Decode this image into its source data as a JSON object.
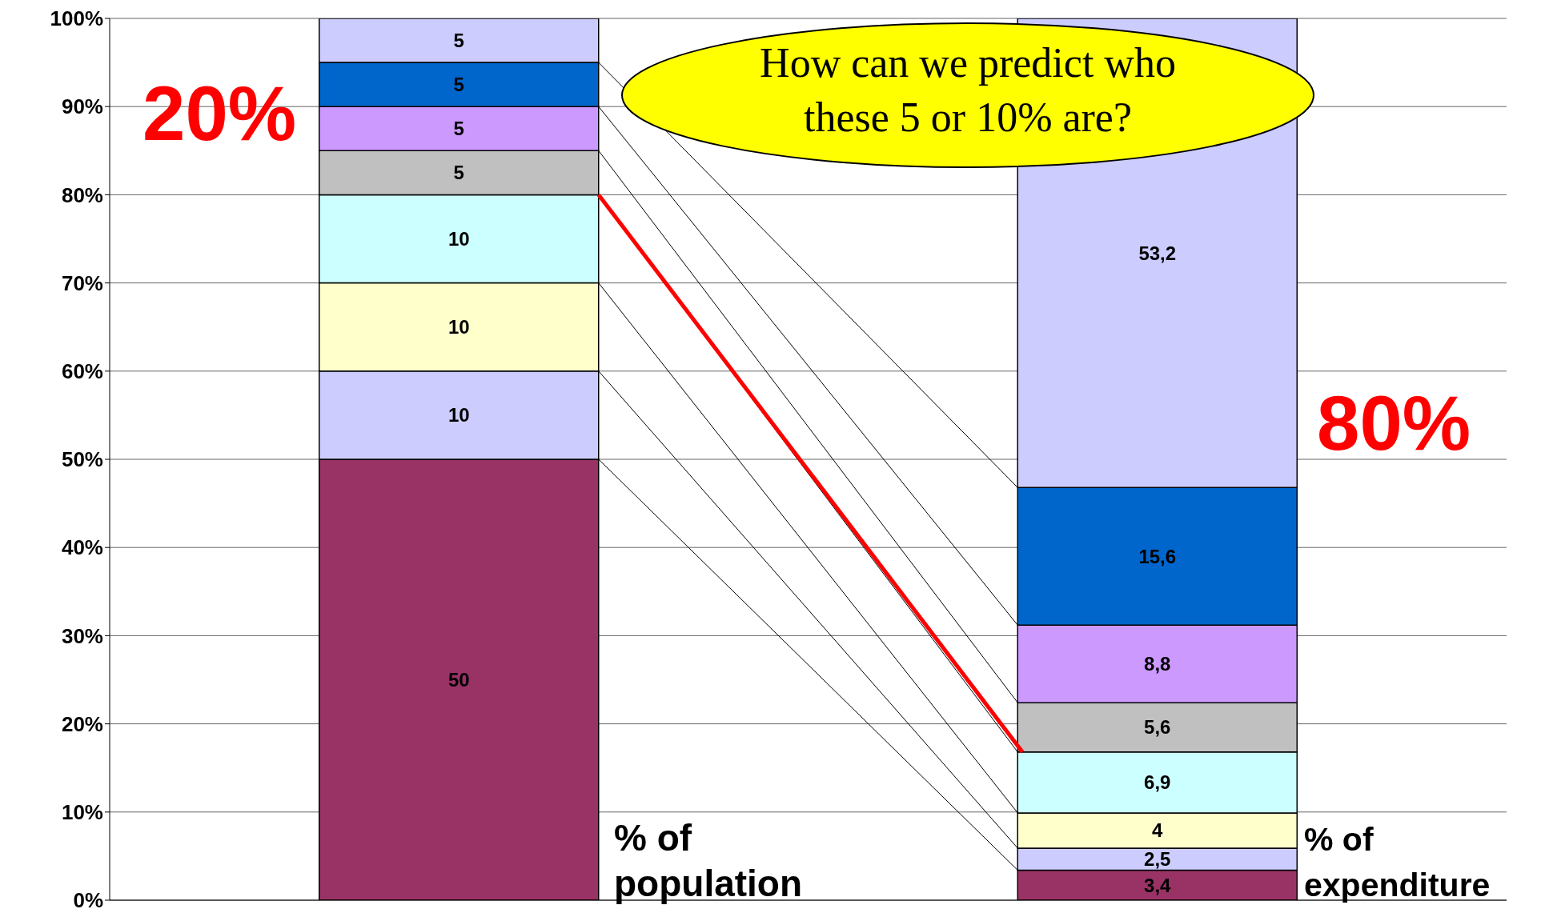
{
  "chart_data": {
    "type": "bar",
    "stacked": true,
    "categories": [
      null,
      null
    ],
    "series": [
      {
        "color": "#993366",
        "values": [
          50,
          3.4
        ],
        "value_labels": [
          "50",
          "3,4"
        ]
      },
      {
        "color": "#ccccff",
        "values": [
          10,
          2.5
        ],
        "value_labels": [
          "10",
          "2,5"
        ]
      },
      {
        "color": "#ffffcc",
        "values": [
          10,
          4
        ],
        "value_labels": [
          "10",
          "4"
        ]
      },
      {
        "color": "#ccffff",
        "values": [
          10,
          6.9
        ],
        "value_labels": [
          "10",
          "6,9"
        ]
      },
      {
        "color": "#c0c0c0",
        "values": [
          5,
          5.6
        ],
        "value_labels": [
          "5",
          "5,6"
        ]
      },
      {
        "color": "#cc99ff",
        "values": [
          5,
          8.8
        ],
        "value_labels": [
          "5",
          "8,8"
        ]
      },
      {
        "color": "#0066cc",
        "values": [
          5,
          15.6
        ],
        "value_labels": [
          "5",
          "15,6"
        ]
      },
      {
        "color": "#ccccff",
        "values": [
          5,
          53.2
        ],
        "value_labels": [
          "5",
          "53,2"
        ]
      }
    ],
    "ylim": [
      0,
      100
    ],
    "yticks": [
      {
        "value": 0,
        "label": "0%"
      },
      {
        "value": 10,
        "label": "10%"
      },
      {
        "value": 20,
        "label": "20%"
      },
      {
        "value": 30,
        "label": "30%"
      },
      {
        "value": 40,
        "label": "40%"
      },
      {
        "value": 50,
        "label": "50%"
      },
      {
        "value": 60,
        "label": "60%"
      },
      {
        "value": 70,
        "label": "70%"
      },
      {
        "value": 80,
        "label": "80%"
      },
      {
        "value": 90,
        "label": "90%"
      },
      {
        "value": 100,
        "label": "100%"
      }
    ],
    "grid": "y",
    "tick_labels": "y",
    "annotations": [
      "20%",
      "80%",
      "How can we predict who these 5 or 10% are?",
      "% of population",
      "% of expenditure"
    ]
  }
}
